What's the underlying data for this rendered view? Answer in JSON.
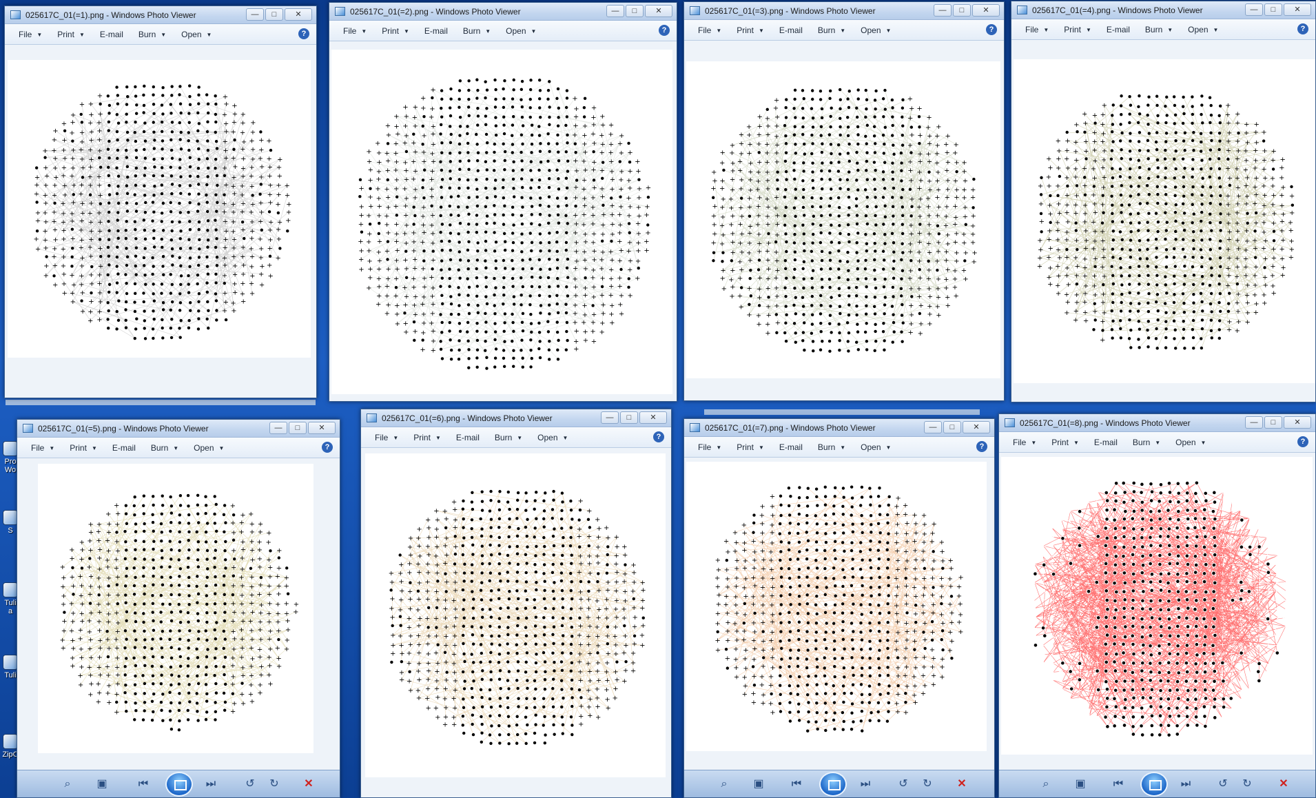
{
  "app_name": "Windows Photo Viewer",
  "menu": {
    "file": "File",
    "print": "Print",
    "email": "E-mail",
    "burn": "Burn",
    "open": "Open",
    "help": "?"
  },
  "window_controls": {
    "minimize": "—",
    "maximize": "□",
    "close": "✕"
  },
  "desktop_icons": [
    "Pro Wo",
    "S",
    "Tuli a",
    "Tuli",
    "ZipC"
  ],
  "windows": [
    {
      "title": "025617C_01(=1).png - Windows Photo Viewer",
      "edge_color": "#808080"
    },
    {
      "title": "025617C_01(=2).png - Windows Photo Viewer",
      "edge_color": "#a7b5a4"
    },
    {
      "title": "025617C_01(=3).png - Windows Photo Viewer",
      "edge_color": "#8d9c68"
    },
    {
      "title": "025617C_01(=4).png - Windows Photo Viewer",
      "edge_color": "#7f7f2a"
    },
    {
      "title": "025617C_01(=5).png - Windows Photo Viewer",
      "edge_color": "#b3a23a"
    },
    {
      "title": "025617C_01(=6).png - Windows Photo Viewer",
      "edge_color": "#c8943a"
    },
    {
      "title": "025617C_01(=7).png - Windows Photo Viewer",
      "edge_color": "#e07a22"
    },
    {
      "title": "025617C_01(=8).png - Windows Photo Viewer",
      "edge_color": "#ff0000"
    }
  ]
}
